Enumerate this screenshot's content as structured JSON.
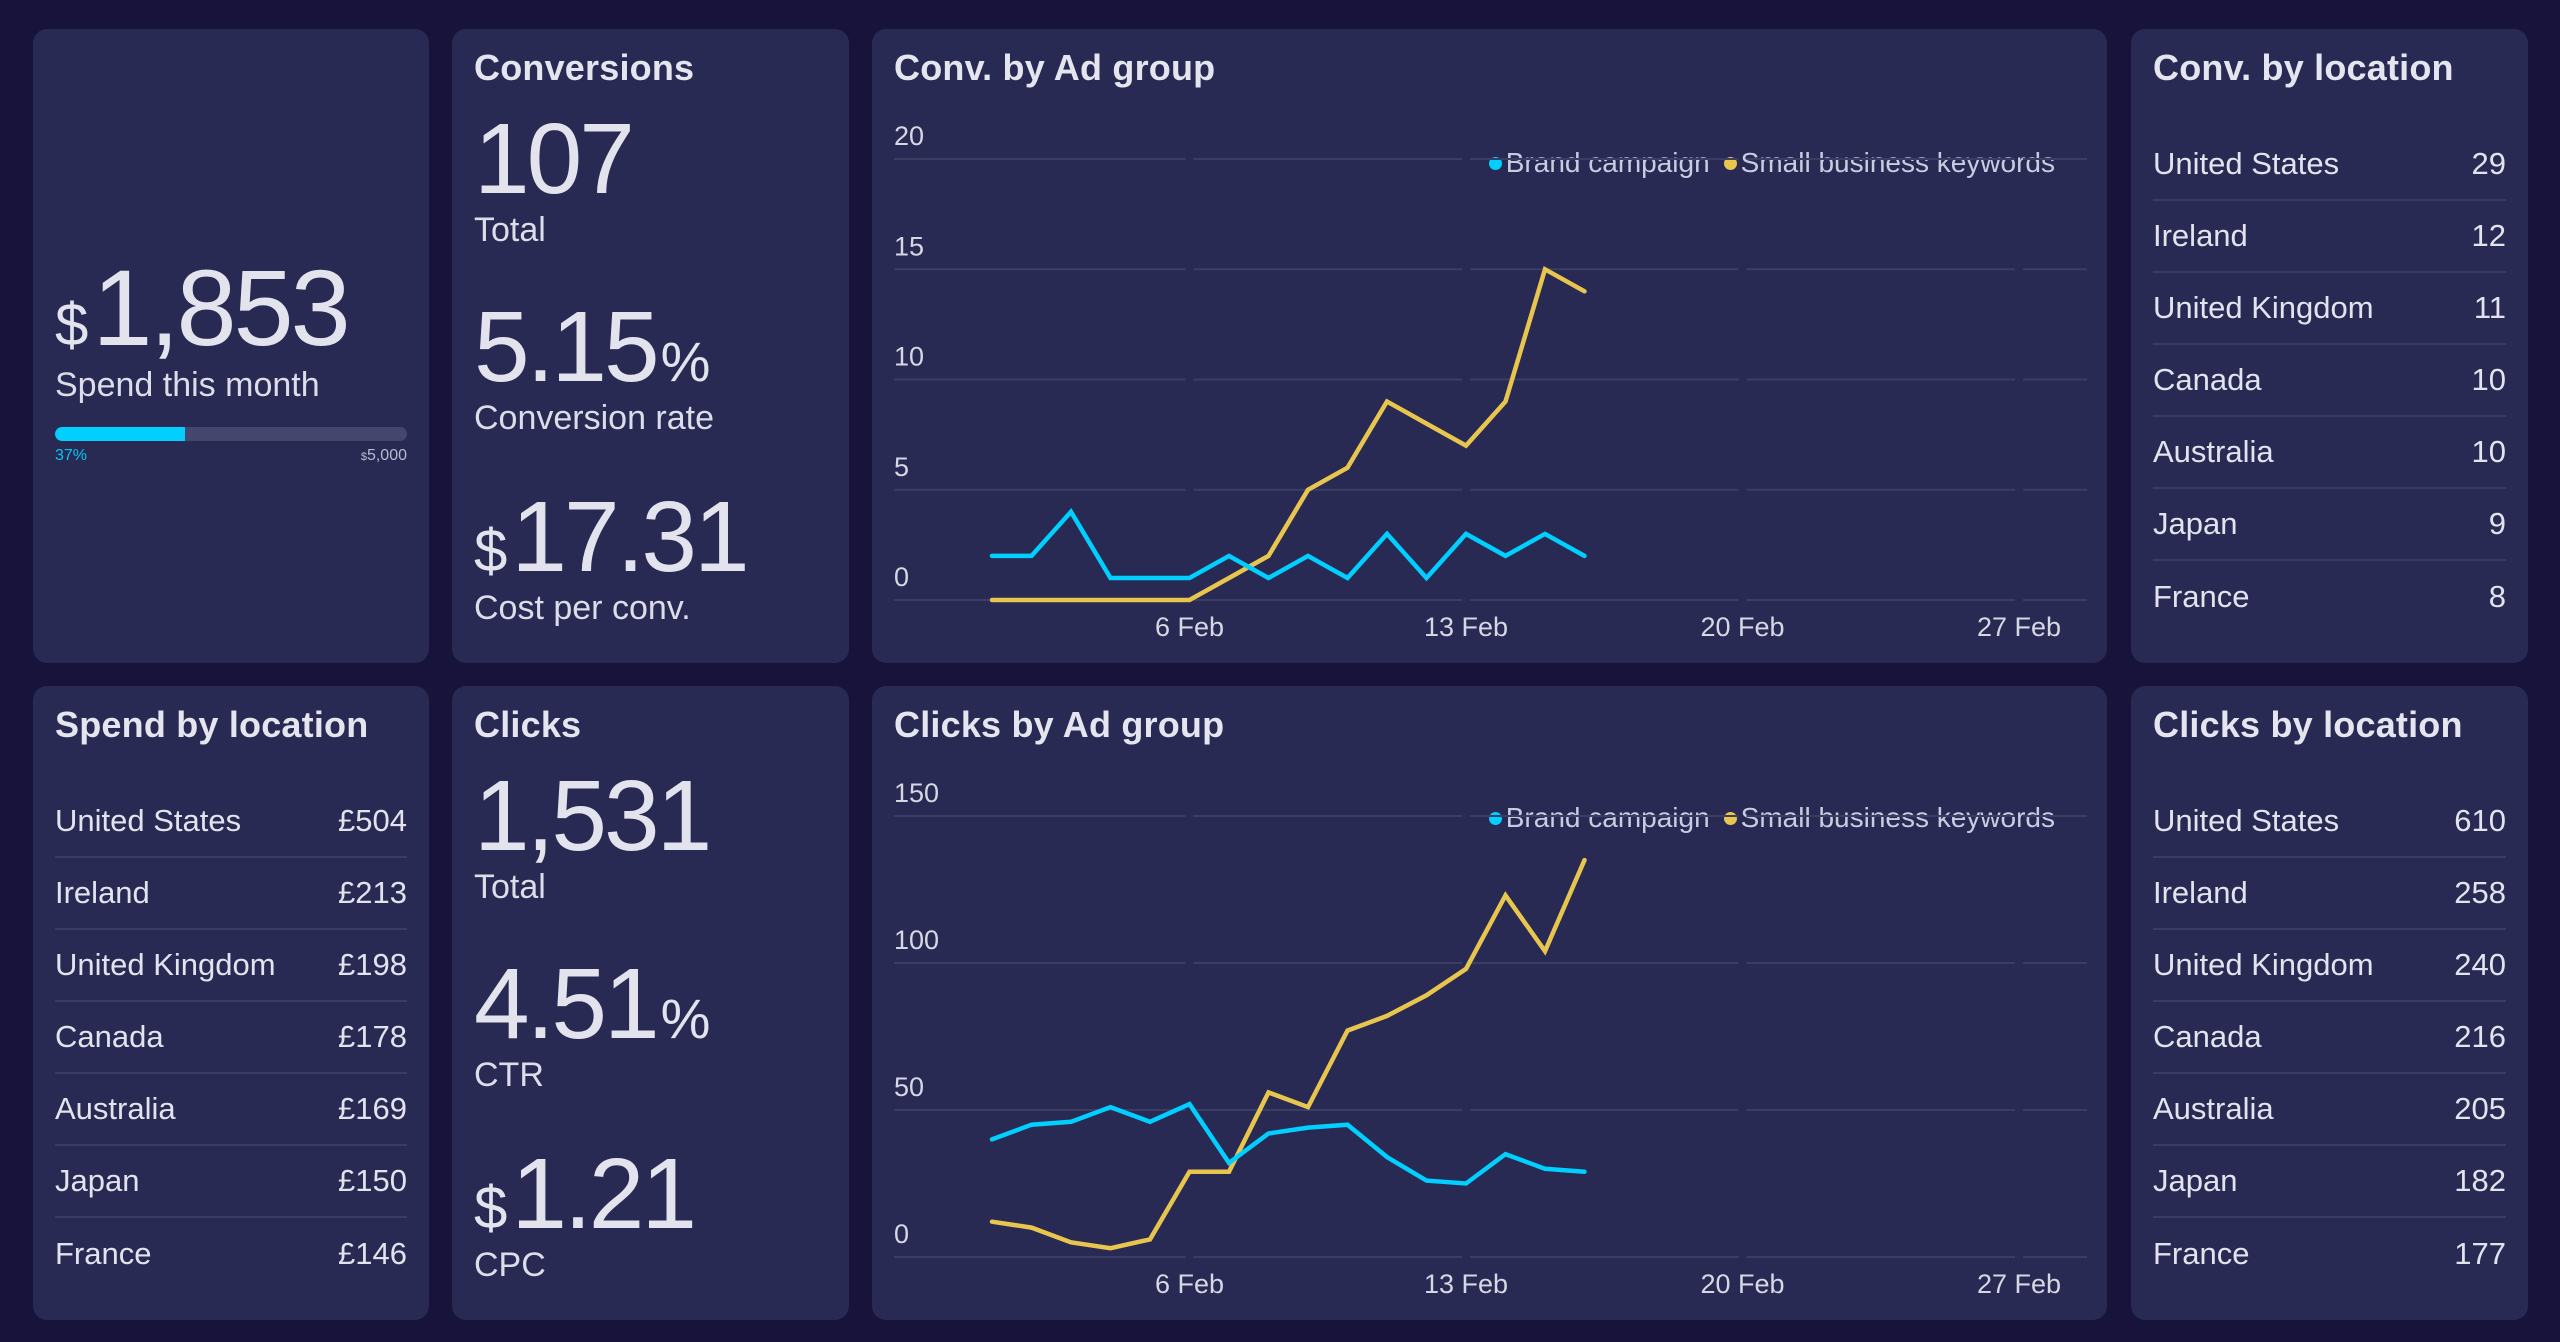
{
  "colors": {
    "background": "#17133b",
    "card": "#282a53",
    "brand_series": "#00cfff",
    "small_business_series": "#e8c64e",
    "progress_track": "#44466d"
  },
  "spend": {
    "currency": "$",
    "value": "1,853",
    "label": "Spend this month",
    "progress_percent": 37,
    "progress_label": "37%",
    "target_currency": "$",
    "target": "5,000"
  },
  "conversions": {
    "title": "Conversions",
    "total": "107",
    "total_label": "Total",
    "rate": "5.15",
    "rate_unit": "%",
    "rate_label": "Conversion rate",
    "cost_currency": "$",
    "cost": "17.31",
    "cost_label": "Cost per conv."
  },
  "clicks": {
    "title": "Clicks",
    "total": "1,531",
    "total_label": "Total",
    "ctr": "4.51",
    "ctr_unit": "%",
    "ctr_label": "CTR",
    "cpc_currency": "$",
    "cpc": "1.21",
    "cpc_label": "CPC"
  },
  "conv_by_location": {
    "title": "Conv. by location",
    "rows": [
      {
        "country": "United States",
        "value": "29"
      },
      {
        "country": "Ireland",
        "value": "12"
      },
      {
        "country": "United Kingdom",
        "value": "11"
      },
      {
        "country": "Canada",
        "value": "10"
      },
      {
        "country": "Australia",
        "value": "10"
      },
      {
        "country": "Japan",
        "value": "9"
      },
      {
        "country": "France",
        "value": "8"
      }
    ]
  },
  "spend_by_location": {
    "title": "Spend by location",
    "rows": [
      {
        "country": "United States",
        "value": "£504"
      },
      {
        "country": "Ireland",
        "value": "£213"
      },
      {
        "country": "United Kingdom",
        "value": "£198"
      },
      {
        "country": "Canada",
        "value": "£178"
      },
      {
        "country": "Australia",
        "value": "£169"
      },
      {
        "country": "Japan",
        "value": "£150"
      },
      {
        "country": "France",
        "value": "£146"
      }
    ]
  },
  "clicks_by_location": {
    "title": "Clicks by location",
    "rows": [
      {
        "country": "United States",
        "value": "610"
      },
      {
        "country": "Ireland",
        "value": "258"
      },
      {
        "country": "United Kingdom",
        "value": "240"
      },
      {
        "country": "Canada",
        "value": "216"
      },
      {
        "country": "Australia",
        "value": "205"
      },
      {
        "country": "Japan",
        "value": "182"
      },
      {
        "country": "France",
        "value": "177"
      }
    ]
  },
  "chart_data": [
    {
      "type": "line",
      "title": "Conv. by Ad group",
      "xlabel": "",
      "ylabel": "",
      "x": [
        "1 Feb",
        "2 Feb",
        "3 Feb",
        "4 Feb",
        "5 Feb",
        "6 Feb",
        "7 Feb",
        "8 Feb",
        "9 Feb",
        "10 Feb",
        "11 Feb",
        "12 Feb",
        "13 Feb",
        "14 Feb",
        "15 Feb",
        "16 Feb"
      ],
      "x_domain_days": [
        1,
        29
      ],
      "x_ticks": [
        {
          "day": 6,
          "label": "6 Feb"
        },
        {
          "day": 13,
          "label": "13 Feb"
        },
        {
          "day": 20,
          "label": "20 Feb"
        },
        {
          "day": 27,
          "label": "27 Feb"
        }
      ],
      "y_ticks": [
        0,
        5,
        10,
        15,
        20
      ],
      "ylim": [
        0,
        20
      ],
      "grid": true,
      "legend_position": "top-right",
      "series": [
        {
          "name": "Brand campaign",
          "color": "#00cfff",
          "values": [
            2,
            2,
            4,
            1,
            1,
            1,
            2,
            1,
            2,
            1,
            3,
            1,
            3,
            2,
            3,
            2
          ]
        },
        {
          "name": "Small business keywords",
          "color": "#e8c64e",
          "values": [
            0,
            0,
            0,
            0,
            0,
            0,
            1,
            2,
            5,
            6,
            9,
            8,
            7,
            9,
            15,
            14
          ]
        }
      ]
    },
    {
      "type": "line",
      "title": "Clicks by Ad group",
      "xlabel": "",
      "ylabel": "",
      "x": [
        "1 Feb",
        "2 Feb",
        "3 Feb",
        "4 Feb",
        "5 Feb",
        "6 Feb",
        "7 Feb",
        "8 Feb",
        "9 Feb",
        "10 Feb",
        "11 Feb",
        "12 Feb",
        "13 Feb",
        "14 Feb",
        "15 Feb",
        "16 Feb"
      ],
      "x_domain_days": [
        1,
        29
      ],
      "x_ticks": [
        {
          "day": 6,
          "label": "6 Feb"
        },
        {
          "day": 13,
          "label": "13 Feb"
        },
        {
          "day": 20,
          "label": "20 Feb"
        },
        {
          "day": 27,
          "label": "27 Feb"
        }
      ],
      "y_ticks": [
        0,
        50,
        100,
        150
      ],
      "ylim": [
        0,
        150
      ],
      "grid": true,
      "legend_position": "top-right",
      "series": [
        {
          "name": "Brand campaign",
          "color": "#00cfff",
          "values": [
            40,
            45,
            46,
            51,
            46,
            52,
            32,
            42,
            44,
            45,
            34,
            26,
            25,
            35,
            30,
            29
          ]
        },
        {
          "name": "Small business keywords",
          "color": "#e8c64e",
          "values": [
            12,
            10,
            5,
            3,
            6,
            29,
            29,
            56,
            51,
            77,
            82,
            89,
            98,
            123,
            104,
            135
          ]
        }
      ]
    }
  ]
}
